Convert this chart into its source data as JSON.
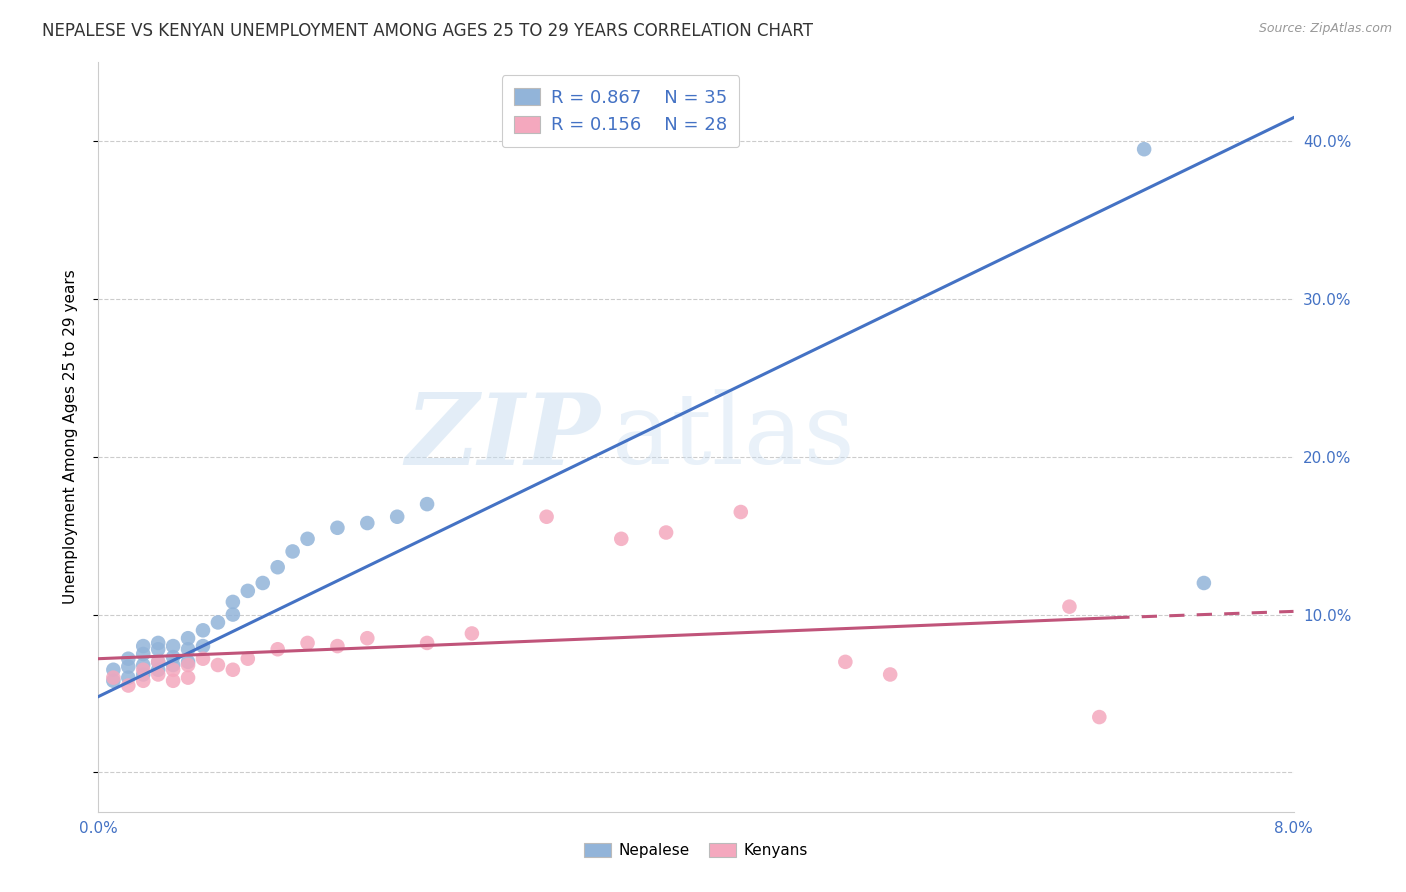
{
  "title": "NEPALESE VS KENYAN UNEMPLOYMENT AMONG AGES 25 TO 29 YEARS CORRELATION CHART",
  "source": "Source: ZipAtlas.com",
  "ylabel": "Unemployment Among Ages 25 to 29 years",
  "xlim": [
    0.0,
    0.08
  ],
  "ylim": [
    -0.025,
    0.45
  ],
  "background_color": "#ffffff",
  "nepalese_color": "#92b4d9",
  "kenyan_color": "#f4a8be",
  "nepalese_line_color": "#4472c4",
  "kenyan_line_color": "#c0547a",
  "legend_R_nepalese": "R = 0.867",
  "legend_N_nepalese": "N = 35",
  "legend_R_kenyan": "R = 0.156",
  "legend_N_kenyan": "N = 28",
  "nepalese_x": [
    0.001,
    0.001,
    0.002,
    0.002,
    0.002,
    0.003,
    0.003,
    0.003,
    0.003,
    0.004,
    0.004,
    0.004,
    0.004,
    0.005,
    0.005,
    0.005,
    0.006,
    0.006,
    0.006,
    0.007,
    0.007,
    0.008,
    0.009,
    0.009,
    0.01,
    0.011,
    0.012,
    0.013,
    0.014,
    0.016,
    0.018,
    0.02,
    0.022,
    0.07,
    0.074
  ],
  "nepalese_y": [
    0.058,
    0.065,
    0.06,
    0.067,
    0.072,
    0.062,
    0.068,
    0.075,
    0.08,
    0.065,
    0.07,
    0.078,
    0.082,
    0.068,
    0.073,
    0.08,
    0.07,
    0.078,
    0.085,
    0.08,
    0.09,
    0.095,
    0.1,
    0.108,
    0.115,
    0.12,
    0.13,
    0.14,
    0.148,
    0.155,
    0.158,
    0.162,
    0.17,
    0.395,
    0.12
  ],
  "kenyan_x": [
    0.001,
    0.002,
    0.003,
    0.003,
    0.004,
    0.004,
    0.005,
    0.005,
    0.006,
    0.006,
    0.007,
    0.008,
    0.009,
    0.01,
    0.012,
    0.014,
    0.016,
    0.018,
    0.022,
    0.025,
    0.03,
    0.035,
    0.038,
    0.043,
    0.05,
    0.053,
    0.065,
    0.067
  ],
  "kenyan_y": [
    0.06,
    0.055,
    0.058,
    0.065,
    0.062,
    0.07,
    0.058,
    0.065,
    0.06,
    0.068,
    0.072,
    0.068,
    0.065,
    0.072,
    0.078,
    0.082,
    0.08,
    0.085,
    0.082,
    0.088,
    0.162,
    0.148,
    0.152,
    0.165,
    0.07,
    0.062,
    0.105,
    0.035
  ],
  "nep_line_x0": 0.0,
  "nep_line_y0": 0.048,
  "nep_line_x1": 0.08,
  "nep_line_y1": 0.415,
  "ken_line_solid_x0": 0.0,
  "ken_line_solid_y0": 0.072,
  "ken_line_solid_x1": 0.068,
  "ken_line_solid_y1": 0.098,
  "ken_line_dash_x0": 0.068,
  "ken_line_dash_y0": 0.098,
  "ken_line_dash_x1": 0.08,
  "ken_line_dash_y1": 0.102,
  "grid_color": "#cccccc",
  "title_fontsize": 12,
  "axis_label_fontsize": 11,
  "tick_fontsize": 11,
  "right_ytick_vals": [
    0.0,
    0.1,
    0.2,
    0.3,
    0.4
  ],
  "right_ytick_labels": [
    "",
    "10.0%",
    "20.0%",
    "30.0%",
    "40.0%"
  ],
  "xtick_vals": [
    0.0,
    0.01,
    0.02,
    0.03,
    0.04,
    0.05,
    0.06,
    0.07,
    0.08
  ],
  "xtick_labels": [
    "0.0%",
    "",
    "",
    "",
    "",
    "",
    "",
    "",
    "8.0%"
  ]
}
